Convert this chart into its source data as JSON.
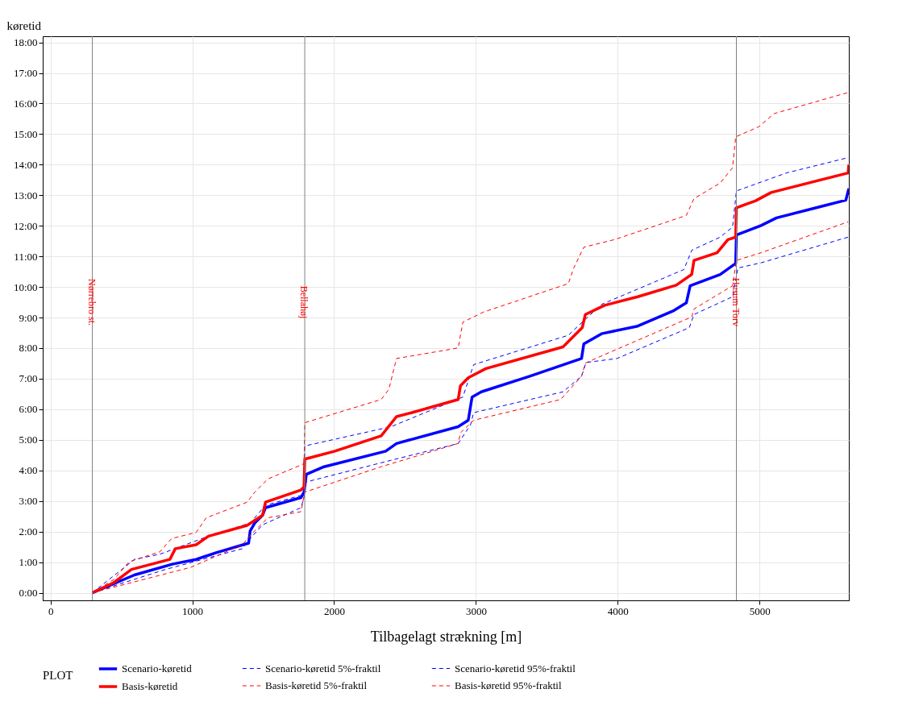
{
  "chart_data": {
    "type": "line",
    "xlabel": "Tilbagelagt strækning [m]",
    "ylabel": "køretid",
    "legend_title": "PLOT",
    "legend": "bottom",
    "grid": true,
    "xlim": [
      -55,
      5630
    ],
    "xticks": [
      0,
      1000,
      2000,
      3000,
      4000,
      5000
    ],
    "ylim": [
      -0.25,
      18.2
    ],
    "yticks": [
      {
        "value": 0,
        "label": "0:00"
      },
      {
        "value": 1,
        "label": "1:00"
      },
      {
        "value": 2,
        "label": "2:00"
      },
      {
        "value": 3,
        "label": "3:00"
      },
      {
        "value": 4,
        "label": "4:00"
      },
      {
        "value": 5,
        "label": "5:00"
      },
      {
        "value": 6,
        "label": "6:00"
      },
      {
        "value": 7,
        "label": "7:00"
      },
      {
        "value": 8,
        "label": "8:00"
      },
      {
        "value": 9,
        "label": "9:00"
      },
      {
        "value": 10,
        "label": "10:00"
      },
      {
        "value": 11,
        "label": "11:00"
      },
      {
        "value": 12,
        "label": "12:00"
      },
      {
        "value": 13,
        "label": "13:00"
      },
      {
        "value": 14,
        "label": "14:00"
      },
      {
        "value": 15,
        "label": "15:00"
      },
      {
        "value": 16,
        "label": "16:00"
      },
      {
        "value": 17,
        "label": "17:00"
      },
      {
        "value": 18,
        "label": "18:00"
      }
    ],
    "ref_lines": [
      {
        "axis": "x",
        "value": 295,
        "label": "Nørrebro st.",
        "color": "#808080"
      },
      {
        "axis": "x",
        "value": 1793,
        "label": "Bellahøj",
        "color": "#808080"
      },
      {
        "axis": "x",
        "value": 4837,
        "label": "Husum Torv",
        "color": "#808080"
      }
    ],
    "series": [
      {
        "name": "Scenario-køretid",
        "color": "#0000ff",
        "line_style": "solid",
        "x": [
          295,
          592,
          864,
          1027,
          1168,
          1397,
          1408,
          1440,
          1495,
          1516,
          1766,
          1788,
          1804,
          1929,
          2364,
          2440,
          2875,
          2946,
          2973,
          3038,
          3380,
          3745,
          3761,
          3886,
          4141,
          4397,
          4484,
          4511,
          4723,
          4832,
          4837,
          5011,
          5120,
          5609,
          5630
        ],
        "values": [
          0,
          0.58,
          0.94,
          1.09,
          1.31,
          1.62,
          2.02,
          2.28,
          2.53,
          2.78,
          3.11,
          3.29,
          3.87,
          4.12,
          4.63,
          4.88,
          5.43,
          5.64,
          6.4,
          6.57,
          7.08,
          7.66,
          8.14,
          8.47,
          8.72,
          9.23,
          9.48,
          10.04,
          10.41,
          10.77,
          11.7,
          12.01,
          12.26,
          12.84,
          13.22
        ]
      },
      {
        "name": "Scenario-køretid 5%-fraktil",
        "color": "#0000ff",
        "line_style": "dashed",
        "x": [
          295,
          810,
          1353,
          1408,
          1495,
          1766,
          1788,
          1793,
          2332,
          2875,
          2962,
          2984,
          3614,
          3745,
          3777,
          3995,
          4505,
          4538,
          4810,
          4848,
          5011,
          5625
        ],
        "values": [
          0,
          0.76,
          1.44,
          1.77,
          2.22,
          2.78,
          3.11,
          3.61,
          4.25,
          4.88,
          5.49,
          5.89,
          6.57,
          7.08,
          7.53,
          7.66,
          8.67,
          9.1,
          9.68,
          10.62,
          10.79,
          11.63
        ]
      },
      {
        "name": "Scenario-køretid 95%-fraktil",
        "color": "#0000ff",
        "line_style": "dashed",
        "x": [
          295,
          592,
          772,
          1098,
          1408,
          1516,
          1788,
          1793,
          2402,
          2908,
          2984,
          3652,
          3690,
          3886,
          4467,
          4522,
          4723,
          4810,
          4837,
          5190,
          5625
        ],
        "values": [
          0,
          1.09,
          1.26,
          1.82,
          2.28,
          2.86,
          3.21,
          4.8,
          5.43,
          6.4,
          7.46,
          8.42,
          8.59,
          9.43,
          10.57,
          11.2,
          11.63,
          11.96,
          13.14,
          13.73,
          14.23
        ]
      },
      {
        "name": "Basis-køretid",
        "color": "#ff0000",
        "line_style": "solid",
        "x": [
          295,
          446,
          571,
          842,
          880,
          1027,
          1114,
          1386,
          1495,
          1516,
          1766,
          1788,
          1793,
          2005,
          2332,
          2440,
          2549,
          2875,
          2891,
          2946,
          3071,
          3614,
          3750,
          3772,
          3908,
          4141,
          4413,
          4522,
          4538,
          4701,
          4777,
          4832,
          4837,
          4973,
          5082,
          5625,
          5630
        ],
        "values": [
          0,
          0.33,
          0.76,
          1.09,
          1.44,
          1.57,
          1.85,
          2.2,
          2.53,
          2.96,
          3.36,
          3.46,
          4.37,
          4.63,
          5.13,
          5.76,
          5.89,
          6.32,
          6.77,
          7.03,
          7.33,
          8.04,
          8.67,
          9.1,
          9.4,
          9.68,
          10.06,
          10.41,
          10.87,
          11.12,
          11.55,
          11.63,
          12.59,
          12.82,
          13.09,
          13.73,
          14.0
        ]
      },
      {
        "name": "Basis-køretid 5%-fraktil",
        "color": "#ff0000",
        "line_style": "dashed",
        "x": [
          295,
          989,
          1353,
          1424,
          1533,
          1766,
          1793,
          2332,
          2875,
          2891,
          2984,
          3598,
          3745,
          3772,
          3908,
          4522,
          4538,
          4810,
          4837,
          5011,
          5625
        ],
        "values": [
          0,
          0.83,
          1.57,
          1.95,
          2.45,
          2.65,
          3.29,
          4.12,
          4.88,
          5.23,
          5.64,
          6.32,
          7.08,
          7.51,
          7.79,
          9.02,
          9.28,
          10.04,
          10.87,
          11.12,
          12.13
        ]
      },
      {
        "name": "Basis-køretid 95%-fraktil",
        "color": "#ff0000",
        "line_style": "dashed",
        "x": [
          295,
          446,
          554,
          772,
          853,
          1027,
          1098,
          1386,
          1440,
          1533,
          1788,
          1793,
          2332,
          2386,
          2440,
          2821,
          2875,
          2908,
          3054,
          3652,
          3690,
          3761,
          3978,
          4484,
          4538,
          4723,
          4810,
          4832,
          4995,
          5103,
          5625
        ],
        "values": [
          0,
          0.43,
          1.01,
          1.34,
          1.77,
          1.97,
          2.45,
          2.96,
          3.29,
          3.72,
          4.22,
          5.56,
          6.32,
          6.65,
          7.66,
          7.96,
          8.01,
          8.85,
          9.18,
          10.11,
          10.62,
          11.3,
          11.55,
          12.34,
          12.89,
          13.4,
          13.9,
          14.91,
          15.24,
          15.67,
          16.36
        ]
      }
    ]
  }
}
